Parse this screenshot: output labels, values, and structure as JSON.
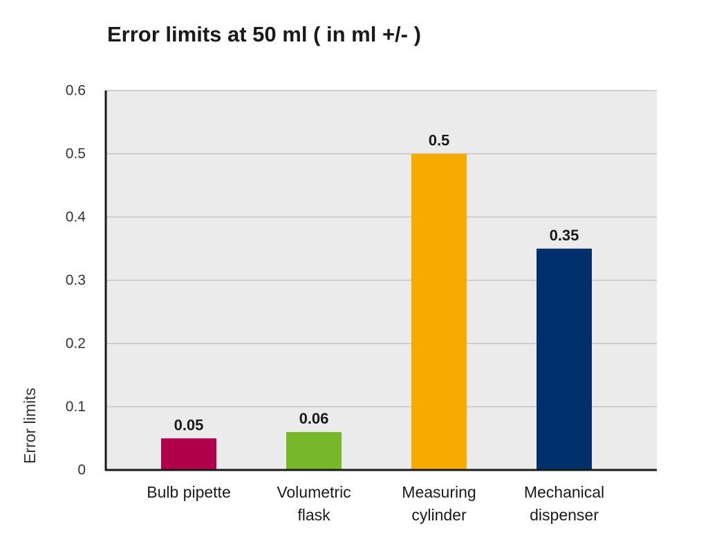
{
  "chart_data": {
    "type": "bar",
    "title": "Error limits at 50 ml ( in ml +/- )",
    "xlabel": "",
    "ylabel": "Error limits",
    "categories": [
      [
        "Bulb pipette"
      ],
      [
        "Volumetric",
        "flask"
      ],
      [
        "Measuring",
        "cylinder"
      ],
      [
        "Mechanical",
        "dispenser"
      ]
    ],
    "values": [
      0.05,
      0.06,
      0.5,
      0.35
    ],
    "data_labels": [
      "0.05",
      "0.06",
      "0.5",
      "0.35"
    ],
    "colors": [
      "#b3004a",
      "#76b82a",
      "#f7ab00",
      "#00306b"
    ],
    "ylim": [
      0,
      0.6
    ],
    "yticks": [
      0,
      0.1,
      0.2,
      0.3,
      0.4,
      0.5,
      0.6
    ],
    "ytick_labels": [
      "0",
      "0.1",
      "0.2",
      "0.3",
      "0.4",
      "0.5",
      "0.6"
    ],
    "grid": true,
    "plot_background": "#ebebeb",
    "legend": "none"
  }
}
